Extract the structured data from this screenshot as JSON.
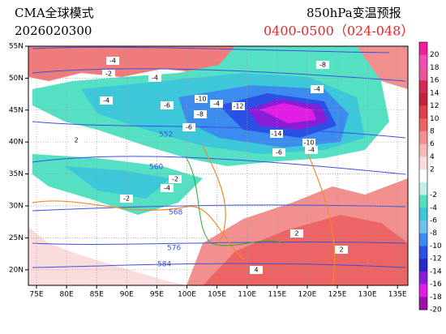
{
  "header": {
    "model": "CMA全球模式",
    "init_time": "2026020300",
    "product": "850hPa变温预报",
    "period": "0400-0500（024-048）"
  },
  "map": {
    "lat_labels": [
      "55N",
      "50N",
      "45N",
      "40N",
      "35N",
      "30N",
      "25N",
      "20N"
    ],
    "lon_labels": [
      "75E",
      "80E",
      "85E",
      "90E",
      "95E",
      "100E",
      "105E",
      "110E",
      "115E",
      "120E",
      "125E",
      "130E",
      "135E"
    ],
    "height_contour_labels": [
      "552",
      "560",
      "568",
      "576",
      "584"
    ],
    "temp_change_labels": [
      "-4",
      "-2",
      "-4",
      "-4",
      "-6",
      "-10",
      "-4",
      "-12",
      "-8",
      "-6",
      "-8",
      "-4",
      "-14",
      "-6",
      "-10",
      "-4",
      "-2",
      "-4",
      "-2",
      "2",
      "2",
      "4",
      "2"
    ]
  },
  "colorbar": {
    "labels": [
      "20",
      "18",
      "16",
      "14",
      "12",
      "10",
      "8",
      "6",
      "4",
      "2",
      "-2",
      "-4",
      "-6",
      "-8",
      "-10",
      "-12",
      "-14",
      "-16",
      "-18",
      "-20"
    ],
    "colors": [
      "#f01ea0",
      "#f24fb4",
      "#e8559a",
      "#d42a5a",
      "#c0243c",
      "#e0404a",
      "#ec6464",
      "#f29090",
      "#f6b8b8",
      "#fadcdc",
      "#ffffff",
      "#bff0e4",
      "#55e0c4",
      "#3cc8d8",
      "#70c0f0",
      "#3c8cf0",
      "#2a50e6",
      "#2a28c8",
      "#8a1ed8",
      "#e21ee6",
      "#9a12a8"
    ]
  }
}
